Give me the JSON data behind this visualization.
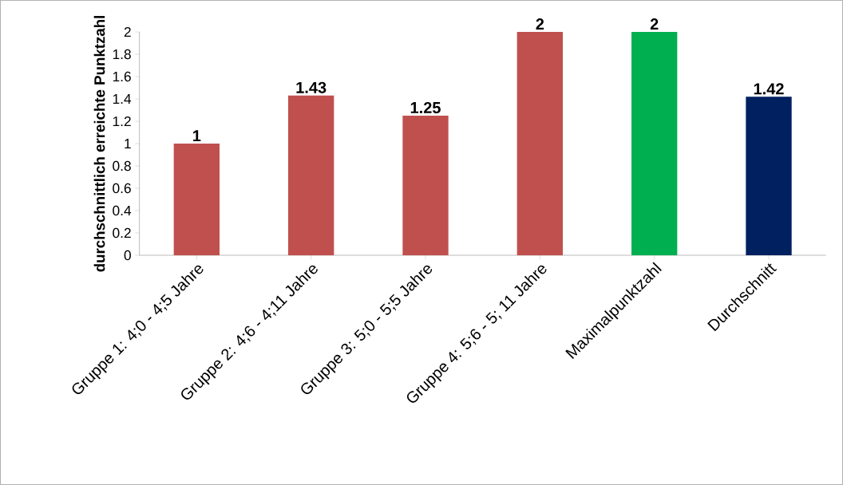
{
  "chart_data": {
    "type": "bar",
    "ylabel": "durchschnittlich erreichte Punktzahl",
    "categories": [
      "Gruppe 1: 4;0 - 4;5 Jahre",
      "Gruppe 2: 4;6 - 4;11 Jahre",
      "Gruppe 3: 5;0 - 5;5 Jahre",
      "Gruppe 4: 5;6 - 5; 11 Jahre",
      "Maximalpunktzahl",
      "Durchschnitt"
    ],
    "values": [
      1,
      1.43,
      1.25,
      2,
      2,
      1.42
    ],
    "colors": [
      "#c0504d",
      "#c0504d",
      "#c0504d",
      "#c0504d",
      "#00b050",
      "#002060"
    ],
    "ylim": [
      0,
      2
    ],
    "yticks": [
      0,
      0.2,
      0.4,
      0.6,
      0.8,
      1,
      1.2,
      1.4,
      1.6,
      1.8,
      2
    ],
    "data_labels": true,
    "grid": false
  }
}
